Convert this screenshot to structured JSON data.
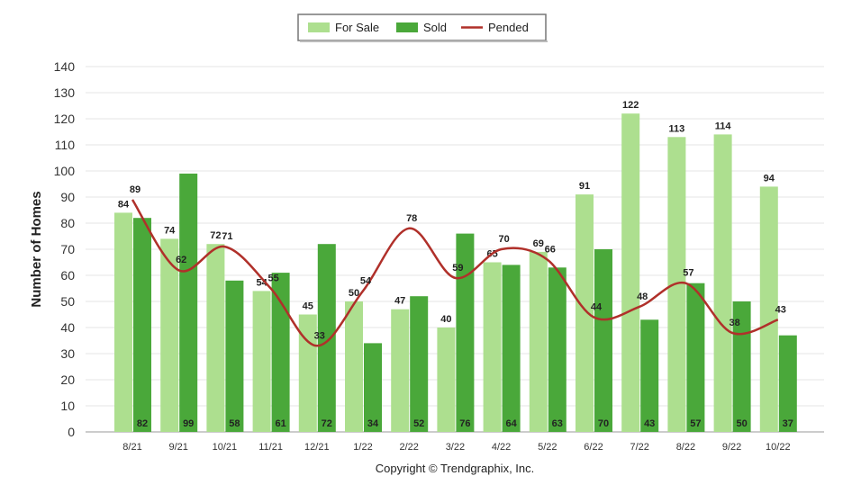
{
  "chart_data": {
    "type": "bar",
    "ylabel": "Number of Homes",
    "ylim": [
      0,
      140
    ],
    "yticks": [
      0,
      10,
      20,
      30,
      40,
      50,
      60,
      70,
      80,
      90,
      100,
      110,
      120,
      130,
      140
    ],
    "grid": true,
    "legend_position": "top-center",
    "categories": [
      "8/21",
      "9/21",
      "10/21",
      "11/21",
      "12/21",
      "1/22",
      "2/22",
      "3/22",
      "4/22",
      "5/22",
      "6/22",
      "7/22",
      "8/22",
      "9/22",
      "10/22"
    ],
    "series": [
      {
        "name": "For Sale",
        "type": "bar",
        "color": "#addf8f",
        "values": [
          84,
          74,
          72,
          54,
          45,
          50,
          47,
          40,
          65,
          69,
          91,
          122,
          113,
          114,
          94
        ]
      },
      {
        "name": "Sold",
        "type": "bar",
        "color": "#4aa83a",
        "values": [
          82,
          99,
          58,
          61,
          72,
          34,
          52,
          76,
          64,
          63,
          70,
          43,
          57,
          50,
          37
        ]
      },
      {
        "name": "Pended",
        "type": "line",
        "color": "#b0302a",
        "values": [
          89,
          62,
          71,
          55,
          33,
          54,
          78,
          59,
          70,
          66,
          44,
          48,
          57,
          38,
          43
        ]
      }
    ],
    "footer": "Copyright © Trendgraphix, Inc."
  }
}
